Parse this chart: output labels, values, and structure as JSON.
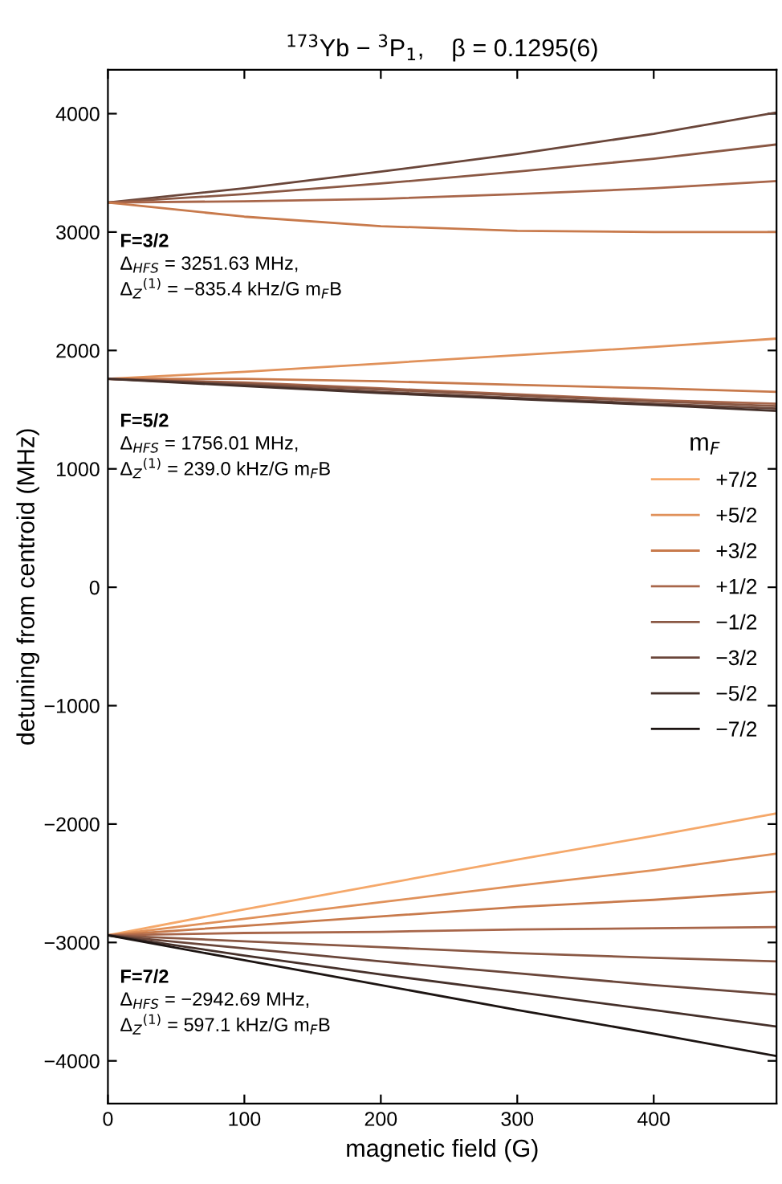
{
  "chart_data": {
    "type": "line",
    "title": "$^{173}$Yb − $^{3}$P$_{1}$,    β = 0.1295(6)",
    "xlabel": "magnetic field (G)",
    "ylabel": "detuning from centroid (MHz)",
    "legend_title": "m$_{F}$",
    "x": [
      0,
      100,
      200,
      300,
      400,
      490
    ],
    "xlim": [
      0,
      490
    ],
    "ylim": [
      -4360,
      4370
    ],
    "xticks": [
      0,
      100,
      200,
      300,
      400
    ],
    "yticks": [
      {
        "value": -4000,
        "label": "−4000"
      },
      {
        "value": -3000,
        "label": "−3000"
      },
      {
        "value": -2000,
        "label": "−2000"
      },
      {
        "value": -1000,
        "label": "−1000"
      },
      0,
      1000,
      2000,
      3000,
      4000
    ],
    "grid": false,
    "legend": "center right",
    "marker": "none",
    "line_style": "solid",
    "series": [
      {
        "color": "#6a463a",
        "values": [
          3250,
          3370,
          3510,
          3660,
          3830,
          4010
        ]
      },
      {
        "color": "#8a5844",
        "values": [
          3250,
          3320,
          3410,
          3510,
          3620,
          3740
        ]
      },
      {
        "color": "#a8664a",
        "values": [
          3250,
          3260,
          3280,
          3320,
          3370,
          3430
        ]
      },
      {
        "color": "#c87a4c",
        "values": [
          3250,
          3130,
          3050,
          3010,
          3000,
          3000
        ]
      },
      {
        "color": "#e0915a",
        "values": [
          1760,
          1820,
          1890,
          1960,
          2030,
          2100
        ]
      },
      {
        "color": "#c87a4c",
        "values": [
          1760,
          1760,
          1740,
          1710,
          1680,
          1650
        ]
      },
      {
        "color": "#a8664a",
        "values": [
          1760,
          1730,
          1680,
          1630,
          1580,
          1550
        ]
      },
      {
        "color": "#8a5844",
        "values": [
          1760,
          1720,
          1670,
          1620,
          1570,
          1530
        ]
      },
      {
        "color": "#6a463a",
        "values": [
          1760,
          1710,
          1650,
          1600,
          1550,
          1510
        ]
      },
      {
        "color": "#45302a",
        "values": [
          1760,
          1700,
          1640,
          1590,
          1540,
          1490
        ]
      },
      {
        "name": "+7/2",
        "color": "#f5a86a",
        "values": [
          -2940,
          -2720,
          -2510,
          -2300,
          -2100,
          -1910
        ]
      },
      {
        "name": "+5/2",
        "color": "#e0915a",
        "values": [
          -2940,
          -2800,
          -2660,
          -2520,
          -2390,
          -2250
        ]
      },
      {
        "name": "+3/2",
        "color": "#c87a4c",
        "values": [
          -2940,
          -2860,
          -2780,
          -2700,
          -2640,
          -2570
        ]
      },
      {
        "name": "+1/2",
        "color": "#a8664a",
        "values": [
          -2940,
          -2920,
          -2910,
          -2890,
          -2880,
          -2870
        ]
      },
      {
        "name": "−1/2",
        "color": "#8a5844",
        "values": [
          -2940,
          -2990,
          -3040,
          -3090,
          -3130,
          -3160
        ]
      },
      {
        "name": "−3/2",
        "color": "#6a463a",
        "values": [
          -2940,
          -3050,
          -3160,
          -3260,
          -3360,
          -3440
        ]
      },
      {
        "name": "−5/2",
        "color": "#45302a",
        "values": [
          -2940,
          -3110,
          -3270,
          -3420,
          -3570,
          -3710
        ]
      },
      {
        "name": "−7/2",
        "color": "#1c1412",
        "values": [
          -2940,
          -3150,
          -3360,
          -3570,
          -3770,
          -3960
        ]
      }
    ],
    "annotations": [
      "F=3/2",
      "Δ$_{HFS}$ = 3251.63 MHz,",
      "Δ$_{Z}$$^{(1)}$ = −835.4 kHz/G m$_{F}$B",
      "F=5/2",
      "Δ$_{HFS}$ = 1756.01 MHz,",
      "Δ$_{Z}$$^{(1)}$ = 239.0 kHz/G m$_{F}$B",
      "F=7/2",
      "Δ$_{HFS}$ = −2942.69 MHz,",
      "Δ$_{Z}$$^{(1)}$ = 597.1 kHz/G m$_{F}$B"
    ]
  }
}
